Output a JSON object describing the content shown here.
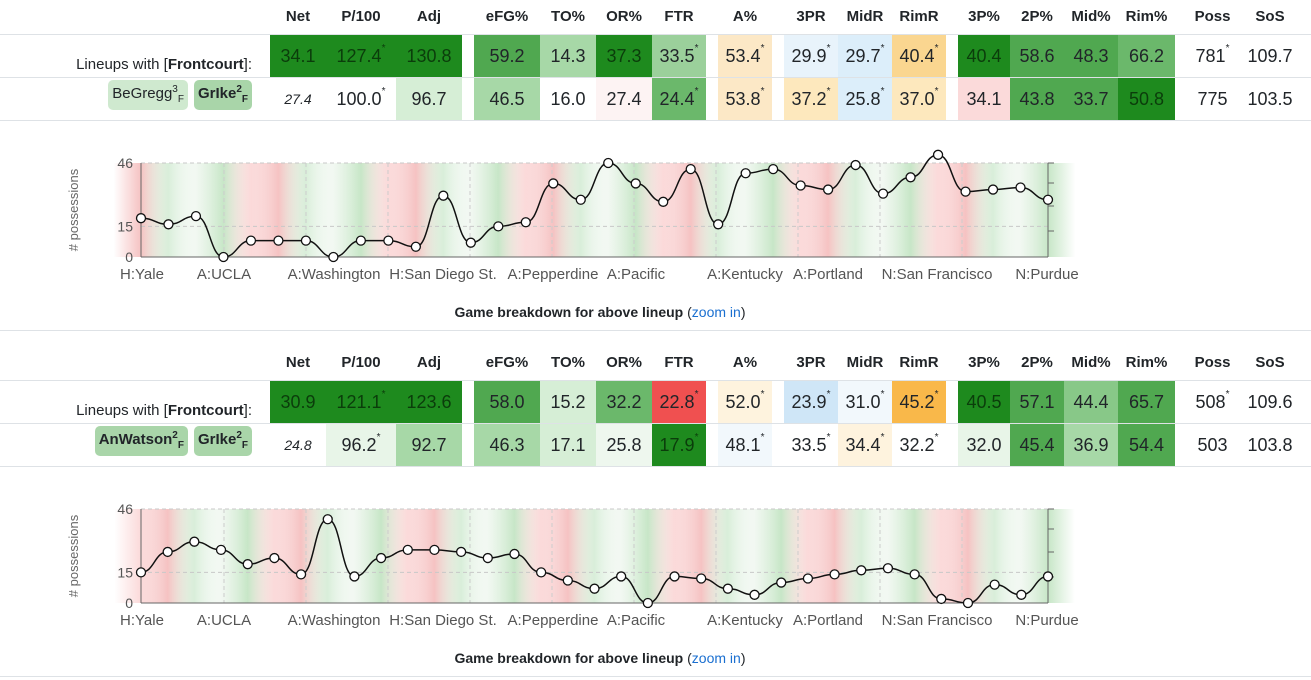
{
  "headers": [
    "Net",
    "P/100",
    "Adj",
    "eFG%",
    "TO%",
    "OR%",
    "FTR",
    "A%",
    "3PR",
    "MidR",
    "RimR",
    "3P%",
    "2P%",
    "Mid%",
    "Rim%",
    "Poss",
    "SoS"
  ],
  "colors": {
    "green_dark": "#008000",
    "green_mid": "#5cb85c",
    "green_light": "#a7d8a7",
    "green_pale": "#d6eed6",
    "red": "#f05050",
    "red_pale": "#fbe0e0",
    "orange": "#f9b84a",
    "orange_pale": "#fde8bd",
    "blue_pale": "#dceefa",
    "link": "#1a6fd0"
  },
  "lineups": [
    {
      "label_prefix": "Lineups with [",
      "label_bold": "Frontcourt",
      "label_suffix": "]:",
      "players": [
        {
          "name": "BeGregg",
          "sup": "3",
          "sub": "F",
          "bg": "#cfe9cf",
          "bold": false
        },
        {
          "name": "GrIke",
          "sup": "2",
          "sub": "F",
          "bg": "#a9d5a9",
          "bold": true
        }
      ],
      "row1": [
        {
          "v": "34.1",
          "bg": "#1e8a1e",
          "star": false
        },
        {
          "v": "127.4",
          "bg": "#1e8a1e",
          "star": true
        },
        {
          "v": "130.8",
          "bg": "#1e8a1e",
          "star": false
        },
        {
          "v": "59.2",
          "bg": "#50a850",
          "star": false
        },
        {
          "v": "14.3",
          "bg": "#a7d8a7",
          "star": false
        },
        {
          "v": "37.3",
          "bg": "#1e8a1e",
          "star": false
        },
        {
          "v": "33.5",
          "bg": "#9bd09b",
          "star": true
        },
        {
          "v": "53.4",
          "bg": "#fce8c6",
          "star": true
        },
        {
          "v": "29.9",
          "bg": "#e8f3fb",
          "star": true
        },
        {
          "v": "29.7",
          "bg": "#dceefa",
          "star": true
        },
        {
          "v": "40.4",
          "bg": "#fad690",
          "star": true
        },
        {
          "v": "40.4",
          "bg": "#1e8a1e",
          "star": false
        },
        {
          "v": "58.6",
          "bg": "#50a850",
          "star": false
        },
        {
          "v": "48.3",
          "bg": "#50a850",
          "star": false
        },
        {
          "v": "66.2",
          "bg": "#6bb86b",
          "star": false
        },
        {
          "v": "781",
          "bg": "#ffffff",
          "star": true
        },
        {
          "v": "109.7",
          "bg": "#ffffff",
          "star": false
        }
      ],
      "row2": [
        {
          "v": "27.4",
          "bg": "#ffffff",
          "star": false,
          "small": true
        },
        {
          "v": "100.0",
          "bg": "#ffffff",
          "star": true
        },
        {
          "v": "96.7",
          "bg": "#d6eed6",
          "star": false
        },
        {
          "v": "46.5",
          "bg": "#a7d8a7",
          "star": false
        },
        {
          "v": "16.0",
          "bg": "#ffffff",
          "star": false
        },
        {
          "v": "27.4",
          "bg": "#fdf3f3",
          "star": false
        },
        {
          "v": "24.4",
          "bg": "#6bb86b",
          "star": true
        },
        {
          "v": "53.8",
          "bg": "#fce8c6",
          "star": true
        },
        {
          "v": "37.2",
          "bg": "#fde8bd",
          "star": true
        },
        {
          "v": "25.8",
          "bg": "#dceefa",
          "star": true
        },
        {
          "v": "37.0",
          "bg": "#fde8bd",
          "star": true
        },
        {
          "v": "34.1",
          "bg": "#fbdada",
          "star": false
        },
        {
          "v": "43.8",
          "bg": "#50a850",
          "star": false
        },
        {
          "v": "33.7",
          "bg": "#50a850",
          "star": false
        },
        {
          "v": "50.8",
          "bg": "#1e8a1e",
          "star": false
        },
        {
          "v": "775",
          "bg": "#ffffff",
          "star": false
        },
        {
          "v": "103.5",
          "bg": "#ffffff",
          "star": false
        }
      ],
      "chart": {
        "ylabel": "# possessions",
        "yticks": [
          "46",
          "15",
          "0"
        ],
        "xticks": [
          "H:Yale",
          "A:UCLA",
          "A:Washington",
          "H:San Diego St.",
          "A:Pepperdine",
          "A:Pacific",
          "A:Kentucky",
          "A:Portland",
          "N:San Francisco",
          "N:Purdue"
        ],
        "values": [
          19,
          16,
          20,
          0,
          8,
          8,
          8,
          0,
          8,
          8,
          5,
          30,
          7,
          15,
          17,
          36,
          28,
          46,
          36,
          27,
          43,
          16,
          41,
          43,
          35,
          33,
          45,
          31,
          39,
          50,
          32,
          33,
          34,
          28
        ]
      },
      "caption": "Game breakdown for above lineup",
      "link_open": "(",
      "link": "zoom in",
      "link_close": ")"
    },
    {
      "label_prefix": "Lineups with [",
      "label_bold": "Frontcourt",
      "label_suffix": "]:",
      "players": [
        {
          "name": "AnWatson",
          "sup": "2",
          "sub": "F",
          "bg": "#a9d5a9",
          "bold": true
        },
        {
          "name": "GrIke",
          "sup": "2",
          "sub": "F",
          "bg": "#a9d5a9",
          "bold": true
        }
      ],
      "row1": [
        {
          "v": "30.9",
          "bg": "#1e8a1e",
          "star": false
        },
        {
          "v": "121.1",
          "bg": "#1e8a1e",
          "star": true
        },
        {
          "v": "123.6",
          "bg": "#1e8a1e",
          "star": false
        },
        {
          "v": "58.0",
          "bg": "#50a850",
          "star": false
        },
        {
          "v": "15.2",
          "bg": "#d6eed6",
          "star": false
        },
        {
          "v": "32.2",
          "bg": "#6bb86b",
          "star": false
        },
        {
          "v": "22.8",
          "bg": "#f05050",
          "star": true
        },
        {
          "v": "52.0",
          "bg": "#fef3de",
          "star": true
        },
        {
          "v": "23.9",
          "bg": "#cfe6f7",
          "star": true
        },
        {
          "v": "31.0",
          "bg": "#f2f8fc",
          "star": true
        },
        {
          "v": "45.2",
          "bg": "#f9b84a",
          "star": true
        },
        {
          "v": "40.5",
          "bg": "#1e8a1e",
          "star": false
        },
        {
          "v": "57.1",
          "bg": "#50a850",
          "star": false
        },
        {
          "v": "44.4",
          "bg": "#88c888",
          "star": false
        },
        {
          "v": "65.7",
          "bg": "#50a850",
          "star": false
        },
        {
          "v": "508",
          "bg": "#ffffff",
          "star": true
        },
        {
          "v": "109.6",
          "bg": "#ffffff",
          "star": false
        }
      ],
      "row2": [
        {
          "v": "24.8",
          "bg": "#ffffff",
          "star": false,
          "small": true
        },
        {
          "v": "96.2",
          "bg": "#e8f5e8",
          "star": true
        },
        {
          "v": "92.7",
          "bg": "#a7d8a7",
          "star": false
        },
        {
          "v": "46.3",
          "bg": "#a7d8a7",
          "star": false
        },
        {
          "v": "17.1",
          "bg": "#d6eed6",
          "star": false
        },
        {
          "v": "25.8",
          "bg": "#eef7ee",
          "star": false
        },
        {
          "v": "17.9",
          "bg": "#1e8a1e",
          "star": true
        },
        {
          "v": "48.1",
          "bg": "#f2f8fc",
          "star": true
        },
        {
          "v": "33.5",
          "bg": "#ffffff",
          "star": true
        },
        {
          "v": "34.4",
          "bg": "#fef3de",
          "star": true
        },
        {
          "v": "32.2",
          "bg": "#ffffff",
          "star": true
        },
        {
          "v": "32.0",
          "bg": "#e8f5e8",
          "star": false
        },
        {
          "v": "45.4",
          "bg": "#50a850",
          "star": false
        },
        {
          "v": "36.9",
          "bg": "#a7d8a7",
          "star": false
        },
        {
          "v": "54.4",
          "bg": "#50a850",
          "star": false
        },
        {
          "v": "503",
          "bg": "#ffffff",
          "star": false
        },
        {
          "v": "103.8",
          "bg": "#ffffff",
          "star": false
        }
      ],
      "chart": {
        "ylabel": "# possessions",
        "yticks": [
          "46",
          "15",
          "0"
        ],
        "xticks": [
          "H:Yale",
          "A:UCLA",
          "A:Washington",
          "H:San Diego St.",
          "A:Pepperdine",
          "A:Pacific",
          "A:Kentucky",
          "A:Portland",
          "N:San Francisco",
          "N:Purdue"
        ],
        "values": [
          15,
          25,
          30,
          26,
          19,
          22,
          14,
          41,
          13,
          22,
          26,
          26,
          25,
          22,
          24,
          15,
          11,
          7,
          13,
          0,
          13,
          12,
          7,
          4,
          10,
          12,
          14,
          16,
          17,
          14,
          2,
          0,
          9,
          4,
          13
        ]
      },
      "caption": "Game breakdown for above lineup",
      "link_open": "(",
      "link": "zoom in",
      "link_close": ")"
    }
  ]
}
